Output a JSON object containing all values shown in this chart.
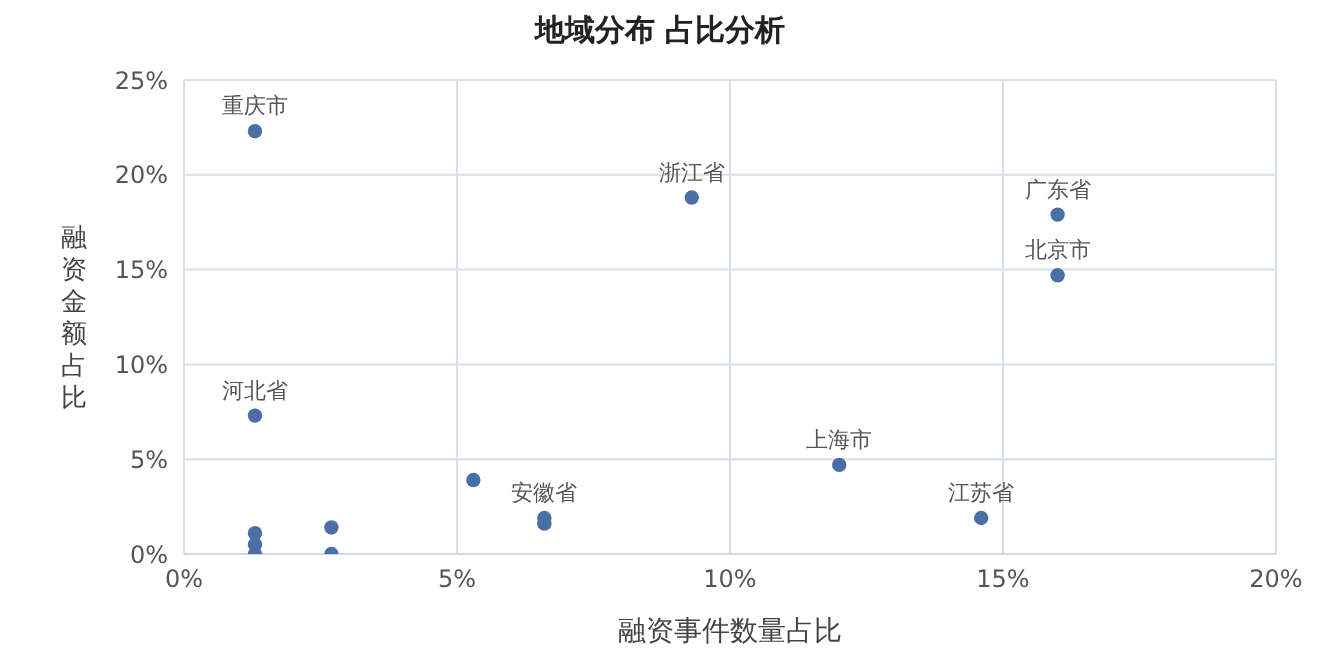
{
  "chart_data": {
    "type": "scatter",
    "title": "地域分布 占比分析",
    "xlabel": "融资事件数量占比",
    "ylabel": "融资金额占比",
    "x": [
      1.3,
      9.3,
      16.0,
      16.0,
      1.3,
      12.0,
      14.6,
      6.6,
      6.6,
      5.3,
      1.3,
      1.3,
      1.3,
      2.7,
      2.7
    ],
    "series": [
      {
        "color": "#4a6fa5",
        "values": [
          22.3,
          18.8,
          17.9,
          14.7,
          7.3,
          4.7,
          1.9,
          1.9,
          1.6,
          3.9,
          1.1,
          0.5,
          0,
          1.4,
          0
        ]
      }
    ],
    "xlim": [
      0,
      20
    ],
    "xticks": [
      {
        "value": 0,
        "label": "0%"
      },
      {
        "value": 5,
        "label": "5%"
      },
      {
        "value": 10,
        "label": "10%"
      },
      {
        "value": 15,
        "label": "15%"
      },
      {
        "value": 20,
        "label": "20%"
      }
    ],
    "ylim": [
      0,
      25
    ],
    "yticks": [
      {
        "value": 0,
        "label": "0%"
      },
      {
        "value": 5,
        "label": "5%"
      },
      {
        "value": 10,
        "label": "10%"
      },
      {
        "value": 15,
        "label": "15%"
      },
      {
        "value": 20,
        "label": "20%"
      },
      {
        "value": 25,
        "label": "25%"
      }
    ],
    "grid": true,
    "legend": false,
    "marker": "circle",
    "annotations": [
      {
        "text": "重庆市",
        "x": 1.3,
        "y": 22.3
      },
      {
        "text": "浙江省",
        "x": 9.3,
        "y": 18.8
      },
      {
        "text": "广东省",
        "x": 16.0,
        "y": 17.9
      },
      {
        "text": "北京市",
        "x": 16.0,
        "y": 14.7
      },
      {
        "text": "河北省",
        "x": 1.3,
        "y": 7.3
      },
      {
        "text": "上海市",
        "x": 12.0,
        "y": 4.7
      },
      {
        "text": "江苏省",
        "x": 14.6,
        "y": 1.9
      },
      {
        "text": "安徽省",
        "x": 6.6,
        "y": 1.9
      }
    ]
  }
}
